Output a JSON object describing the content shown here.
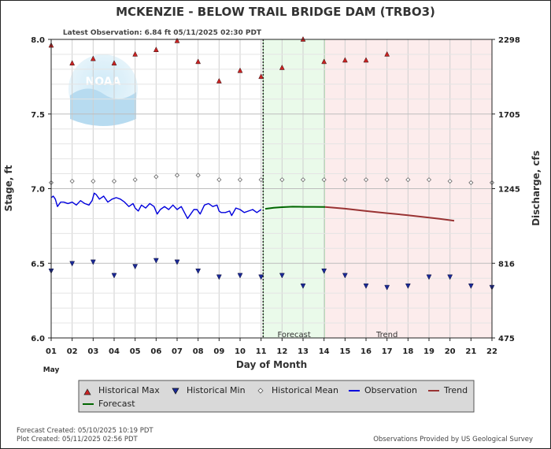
{
  "title": "MCKENZIE - BELOW TRAIL BRIDGE DAM  (TRBO3)",
  "latest_observation": "Latest Observation: 6.84 ft 05/11/2025 02:30 PDT",
  "logo_text": "NOAA",
  "footer": {
    "forecast_created": "Forecast Created: 05/10/2025 10:19 PDT",
    "plot_created": "Plot Created: 05/11/2025 02:56 PDT",
    "provider": "Observations Provided by US Geological Survey"
  },
  "colors": {
    "observation": "#0000dd",
    "forecast": "#006600",
    "trend": "#993333",
    "hist_max": "#cc2222",
    "hist_min": "#1a2a99",
    "hist_mean": "#666666",
    "forecast_bg": "#eafaea",
    "trend_bg": "#fcecec"
  },
  "chart_data": {
    "type": "line",
    "xlabel": "Day of Month",
    "x_month_label": "May",
    "ylabel": "Stage, ft",
    "y2label": "Discharge, cfs",
    "xlim": [
      1,
      22
    ],
    "ylim": [
      6.0,
      8.0
    ],
    "x_ticks": [
      "01",
      "02",
      "03",
      "04",
      "05",
      "06",
      "07",
      "08",
      "09",
      "10",
      "11",
      "12",
      "13",
      "14",
      "15",
      "16",
      "17",
      "18",
      "19",
      "20",
      "21",
      "22"
    ],
    "y_ticks": [
      "6.0",
      "6.5",
      "7.0",
      "7.5",
      "8.0"
    ],
    "y2_ticks": [
      {
        "stage": 6.0,
        "label": "475"
      },
      {
        "stage": 6.5,
        "label": "816"
      },
      {
        "stage": 7.0,
        "label": "1245"
      },
      {
        "stage": 7.5,
        "label": "1705"
      },
      {
        "stage": 8.0,
        "label": "2298"
      }
    ],
    "grid": true,
    "regions": [
      {
        "label": "Forecast",
        "start": 11.1,
        "end": 14.05
      },
      {
        "label": "Trend",
        "start": 14.05,
        "end": 22
      }
    ],
    "now_x": 11.1,
    "legend": {
      "placement": "bottom",
      "items": [
        {
          "label": "Historical Max",
          "symbol": "triangle-up"
        },
        {
          "label": "Historical Min",
          "symbol": "triangle-down"
        },
        {
          "label": "Historical Mean",
          "symbol": "diamond"
        },
        {
          "label": "Observation",
          "symbol": "line-blue"
        },
        {
          "label": "Trend",
          "symbol": "line-red"
        },
        {
          "label": "Forecast",
          "symbol": "line-green"
        }
      ]
    },
    "series": [
      {
        "name": "Historical Max",
        "kind": "marker",
        "x": [
          1,
          2,
          3,
          4,
          5,
          6,
          7,
          8,
          9,
          10,
          11,
          12,
          13,
          14,
          15,
          16,
          17
        ],
        "y": [
          7.96,
          7.84,
          7.87,
          7.84,
          7.9,
          7.93,
          7.99,
          7.85,
          7.72,
          7.79,
          7.75,
          7.81,
          8.0,
          7.85,
          7.86,
          7.86,
          7.9
        ]
      },
      {
        "name": "Historical Min",
        "kind": "marker",
        "x": [
          1,
          2,
          3,
          4,
          5,
          6,
          7,
          8,
          9,
          10,
          11,
          12,
          13,
          14,
          15,
          16,
          17,
          18,
          19,
          20,
          21,
          22
        ],
        "y": [
          6.45,
          6.5,
          6.51,
          6.42,
          6.48,
          6.52,
          6.51,
          6.45,
          6.41,
          6.42,
          6.41,
          6.42,
          6.35,
          6.45,
          6.42,
          6.35,
          6.34,
          6.35,
          6.41,
          6.41,
          6.35,
          6.34
        ]
      },
      {
        "name": "Historical Mean",
        "kind": "marker",
        "x": [
          1,
          2,
          3,
          4,
          5,
          6,
          7,
          8,
          9,
          10,
          11,
          12,
          13,
          14,
          15,
          16,
          17,
          18,
          19,
          20,
          21,
          22
        ],
        "y": [
          7.04,
          7.05,
          7.05,
          7.05,
          7.06,
          7.08,
          7.09,
          7.09,
          7.06,
          7.06,
          7.06,
          7.06,
          7.06,
          7.06,
          7.06,
          7.06,
          7.06,
          7.06,
          7.06,
          7.05,
          7.04,
          7.04
        ]
      },
      {
        "name": "Observation",
        "kind": "line",
        "x": [
          1.0,
          1.1,
          1.2,
          1.3,
          1.45,
          1.6,
          1.8,
          2.0,
          2.2,
          2.4,
          2.6,
          2.8,
          2.95,
          3.05,
          3.15,
          3.3,
          3.5,
          3.7,
          3.9,
          4.1,
          4.3,
          4.5,
          4.7,
          4.9,
          5.0,
          5.15,
          5.3,
          5.5,
          5.7,
          5.9,
          6.05,
          6.2,
          6.4,
          6.6,
          6.8,
          7.0,
          7.2,
          7.35,
          7.5,
          7.65,
          7.8,
          7.95,
          8.1,
          8.3,
          8.5,
          8.7,
          8.9,
          9.0,
          9.1,
          9.3,
          9.5,
          9.6,
          9.8,
          10.0,
          10.2,
          10.4,
          10.6,
          10.8,
          10.9,
          11.0
        ],
        "y": [
          6.94,
          6.95,
          6.93,
          6.88,
          6.91,
          6.91,
          6.9,
          6.91,
          6.89,
          6.92,
          6.9,
          6.89,
          6.92,
          6.97,
          6.96,
          6.93,
          6.95,
          6.91,
          6.93,
          6.94,
          6.93,
          6.91,
          6.88,
          6.9,
          6.87,
          6.85,
          6.89,
          6.87,
          6.9,
          6.88,
          6.83,
          6.86,
          6.88,
          6.86,
          6.89,
          6.86,
          6.88,
          6.84,
          6.8,
          6.83,
          6.86,
          6.86,
          6.83,
          6.89,
          6.9,
          6.88,
          6.89,
          6.85,
          6.84,
          6.84,
          6.85,
          6.82,
          6.87,
          6.86,
          6.84,
          6.85,
          6.86,
          6.84,
          6.85,
          6.86
        ]
      },
      {
        "name": "Forecast",
        "kind": "line",
        "x": [
          11.2,
          11.6,
          12.0,
          12.5,
          13.0,
          13.5,
          14.05
        ],
        "y": [
          6.865,
          6.872,
          6.876,
          6.879,
          6.878,
          6.878,
          6.877
        ]
      },
      {
        "name": "Trend",
        "kind": "line",
        "x": [
          14.05,
          14.5,
          15.0,
          15.5,
          16.0,
          16.5,
          17.0,
          17.5,
          18.0,
          18.5,
          19.0,
          19.5,
          20.0,
          20.2
        ],
        "y": [
          6.877,
          6.872,
          6.866,
          6.858,
          6.85,
          6.843,
          6.836,
          6.829,
          6.822,
          6.814,
          6.806,
          6.798,
          6.789,
          6.785
        ]
      }
    ]
  }
}
